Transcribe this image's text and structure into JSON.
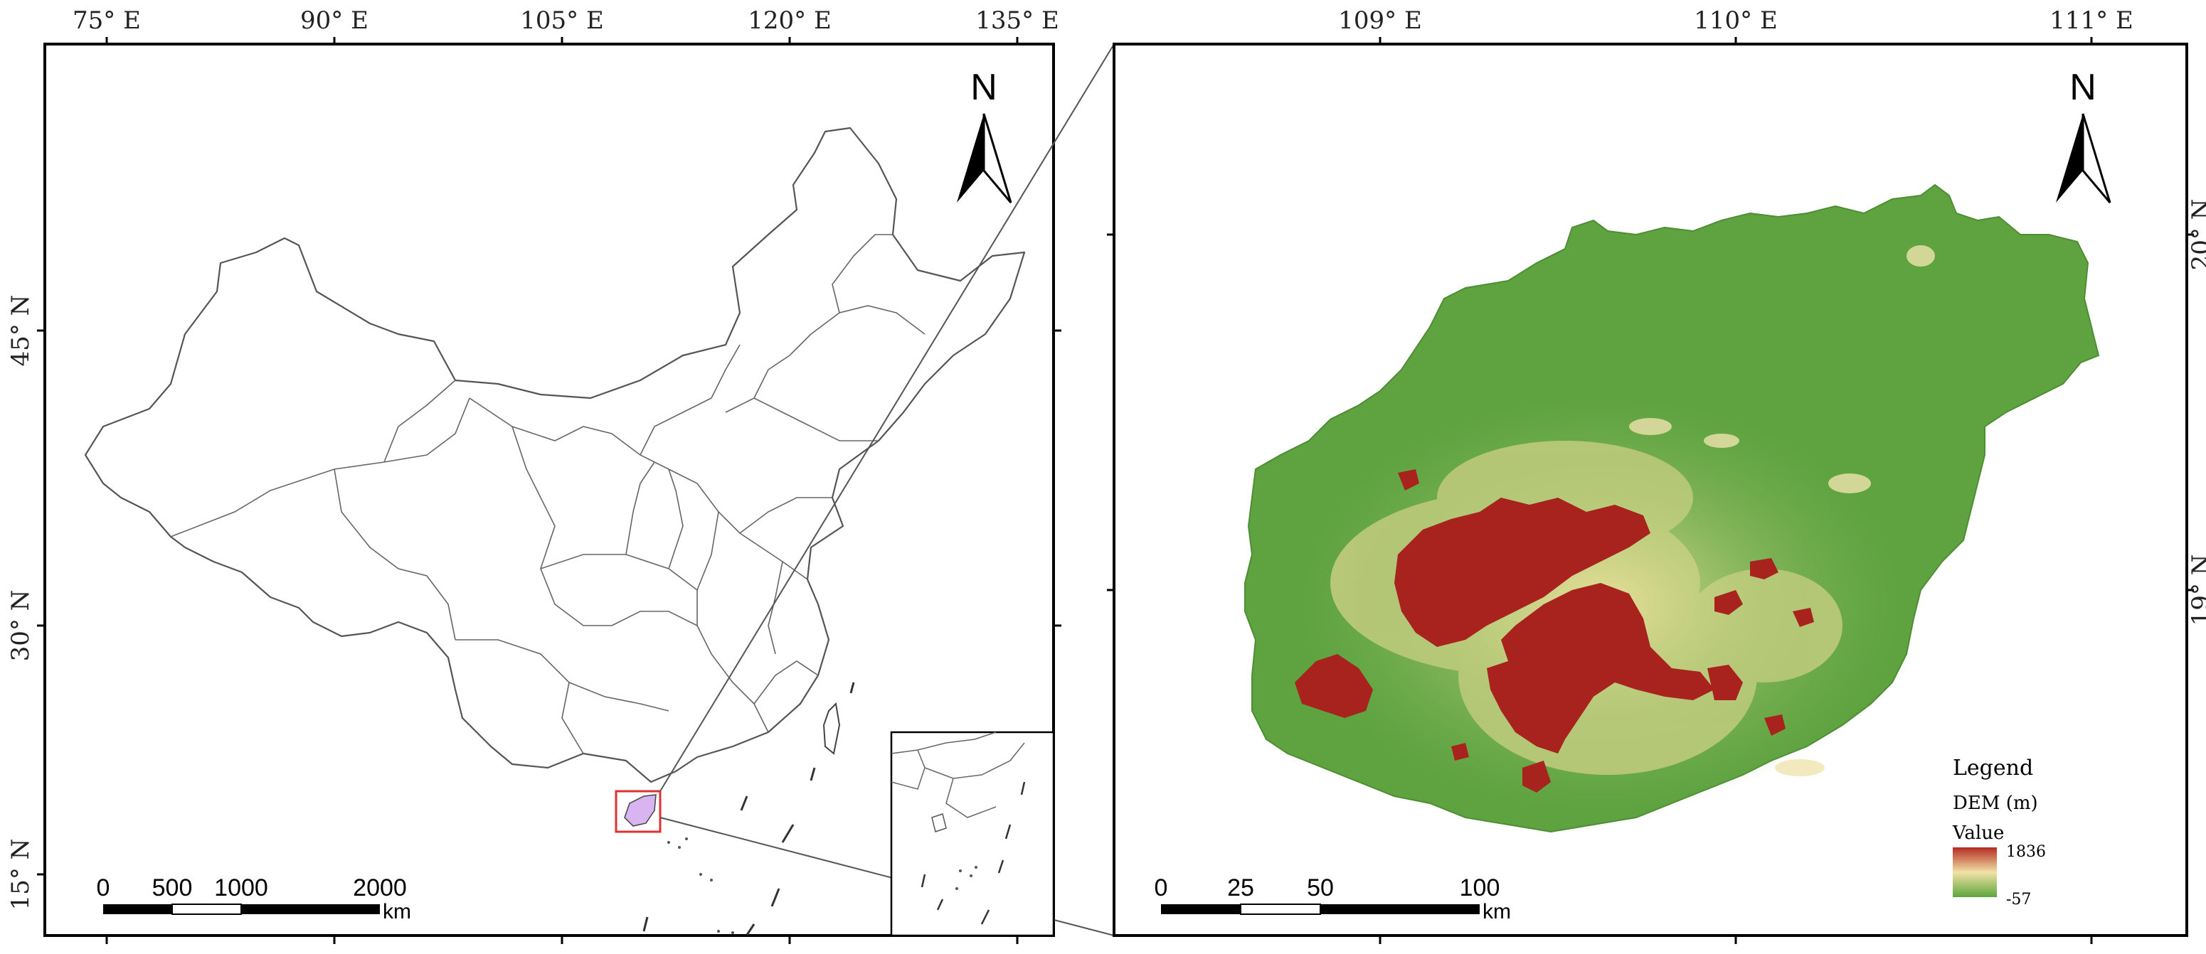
{
  "left_map": {
    "lon_labels": [
      "75° E",
      "90° E",
      "105° E",
      "120° E",
      "135° E"
    ],
    "lat_labels": [
      "45° N",
      "30° N",
      "15° N"
    ],
    "north_label": "N",
    "scale_ticks": [
      "0",
      "500",
      "1000",
      "2000"
    ],
    "scale_unit": "km"
  },
  "right_map": {
    "lon_labels": [
      "109° E",
      "110° E",
      "111° E"
    ],
    "lat_labels": [
      "20° N",
      "19° N"
    ],
    "north_label": "N",
    "scale_ticks": [
      "0",
      "25",
      "50",
      "100"
    ],
    "scale_unit": "km"
  },
  "legend": {
    "title": "Legend",
    "layer": "DEM (m)",
    "value_label": "Value",
    "max": "1836",
    "min": "-57",
    "colors": [
      "#b42a22",
      "#f2e2a6",
      "#5ea63c"
    ]
  },
  "colors": {
    "frame": "#000000",
    "highlight_box": "#e03030",
    "highlight_fill": "#d8b4f0",
    "terrain_green": "#5fa341",
    "terrain_red": "#a8231d"
  }
}
